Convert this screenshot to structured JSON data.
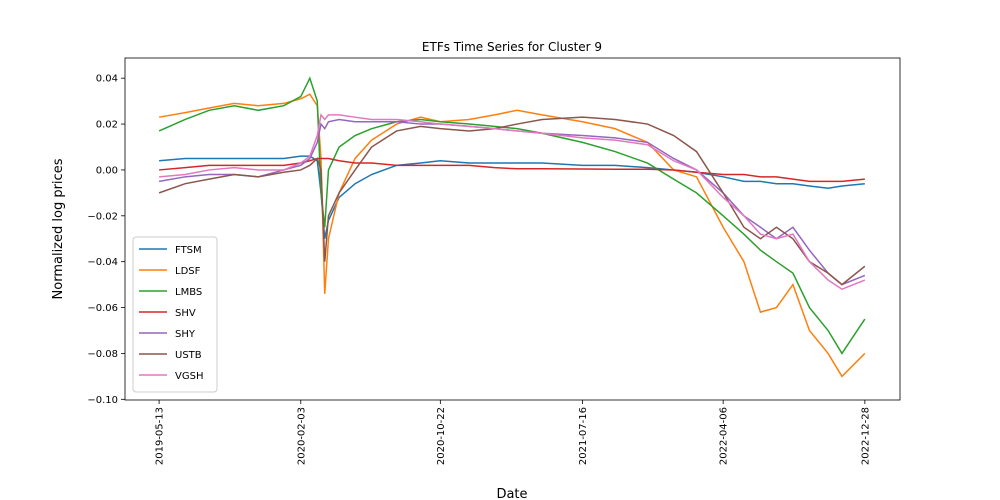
{
  "chart_data": {
    "type": "line",
    "title": "ETFs Time Series for Cluster 9",
    "x_label": "Date",
    "y_label": "Normalized log prices",
    "x": [
      "2019-05-13",
      "2019-07-01",
      "2019-08-15",
      "2019-10-01",
      "2019-11-15",
      "2020-01-02",
      "2020-02-03",
      "2020-02-20",
      "2020-03-05",
      "2020-03-12",
      "2020-03-19",
      "2020-03-26",
      "2020-04-15",
      "2020-05-15",
      "2020-06-15",
      "2020-08-01",
      "2020-09-15",
      "2020-10-22",
      "2020-12-15",
      "2021-02-01",
      "2021-03-15",
      "2021-05-01",
      "2021-07-16",
      "2021-09-15",
      "2021-11-15",
      "2022-01-03",
      "2022-02-15",
      "2022-04-06",
      "2022-05-15",
      "2022-06-15",
      "2022-07-15",
      "2022-08-15",
      "2022-09-15",
      "2022-10-20",
      "2022-11-15",
      "2022-12-28"
    ],
    "series": [
      {
        "name": "FTSM",
        "color": "#1f77b4",
        "values": [
          0.004,
          0.005,
          0.005,
          0.005,
          0.005,
          0.005,
          0.006,
          0.006,
          0.004,
          -0.01,
          -0.03,
          -0.022,
          -0.012,
          -0.006,
          -0.002,
          0.002,
          0.003,
          0.004,
          0.003,
          0.003,
          0.003,
          0.003,
          0.002,
          0.002,
          0.001,
          0.0,
          -0.001,
          -0.003,
          -0.005,
          -0.005,
          -0.006,
          -0.006,
          -0.007,
          -0.008,
          -0.007,
          -0.006
        ]
      },
      {
        "name": "LDSF",
        "color": "#ff7f0e",
        "values": [
          0.023,
          0.025,
          0.027,
          0.029,
          0.028,
          0.029,
          0.031,
          0.033,
          0.028,
          0.005,
          -0.054,
          -0.03,
          -0.01,
          0.005,
          0.013,
          0.02,
          0.023,
          0.021,
          0.022,
          0.024,
          0.026,
          0.024,
          0.021,
          0.018,
          0.012,
          0.0,
          -0.003,
          -0.025,
          -0.04,
          -0.062,
          -0.06,
          -0.05,
          -0.07,
          -0.08,
          -0.09,
          -0.08
        ]
      },
      {
        "name": "LMBS",
        "color": "#2ca02c",
        "values": [
          0.017,
          0.022,
          0.026,
          0.028,
          0.026,
          0.028,
          0.032,
          0.04,
          0.03,
          -0.01,
          -0.025,
          0.0,
          0.01,
          0.015,
          0.018,
          0.021,
          0.022,
          0.021,
          0.02,
          0.019,
          0.018,
          0.016,
          0.012,
          0.008,
          0.003,
          -0.004,
          -0.01,
          -0.02,
          -0.028,
          -0.035,
          -0.04,
          -0.045,
          -0.06,
          -0.07,
          -0.08,
          -0.065
        ]
      },
      {
        "name": "SHV",
        "color": "#d62728",
        "values": [
          0.0,
          0.001,
          0.002,
          0.002,
          0.002,
          0.002,
          0.003,
          0.004,
          0.005,
          0.005,
          0.005,
          0.005,
          0.004,
          0.003,
          0.003,
          0.002,
          0.002,
          0.002,
          0.002,
          0.001,
          0.0005,
          0.0005,
          0.0004,
          0.0003,
          0.0003,
          0.0,
          -0.001,
          -0.002,
          -0.002,
          -0.003,
          -0.003,
          -0.004,
          -0.005,
          -0.005,
          -0.005,
          -0.004
        ]
      },
      {
        "name": "SHY",
        "color": "#9467bd",
        "values": [
          -0.005,
          -0.003,
          -0.002,
          -0.002,
          -0.003,
          0.0,
          0.002,
          0.005,
          0.012,
          0.02,
          0.018,
          0.021,
          0.022,
          0.021,
          0.021,
          0.021,
          0.02,
          0.02,
          0.019,
          0.018,
          0.017,
          0.016,
          0.015,
          0.014,
          0.012,
          0.005,
          0.0,
          -0.01,
          -0.02,
          -0.025,
          -0.03,
          -0.025,
          -0.035,
          -0.045,
          -0.05,
          -0.046
        ]
      },
      {
        "name": "USTB",
        "color": "#8c564b",
        "values": [
          -0.01,
          -0.006,
          -0.004,
          -0.002,
          -0.003,
          -0.001,
          0.0,
          0.002,
          0.005,
          0.0,
          -0.04,
          -0.02,
          -0.01,
          0.0,
          0.01,
          0.017,
          0.019,
          0.018,
          0.017,
          0.018,
          0.02,
          0.022,
          0.023,
          0.022,
          0.02,
          0.015,
          0.008,
          -0.01,
          -0.025,
          -0.03,
          -0.025,
          -0.03,
          -0.04,
          -0.045,
          -0.05,
          -0.042
        ]
      },
      {
        "name": "VGSH",
        "color": "#e377c2",
        "values": [
          -0.003,
          -0.002,
          0.0,
          0.001,
          0.0,
          0.0,
          0.003,
          0.006,
          0.015,
          0.024,
          0.022,
          0.024,
          0.024,
          0.023,
          0.022,
          0.022,
          0.021,
          0.02,
          0.019,
          0.018,
          0.017,
          0.016,
          0.014,
          0.013,
          0.011,
          0.004,
          0.0,
          -0.012,
          -0.02,
          -0.028,
          -0.03,
          -0.028,
          -0.04,
          -0.048,
          -0.052,
          -0.048
        ]
      }
    ],
    "xlim": [
      "2019-03-10",
      "2023-03-04"
    ],
    "xticks": [
      "2019-05-13",
      "2020-02-03",
      "2020-10-22",
      "2021-07-16",
      "2022-04-06",
      "2022-12-28"
    ],
    "ylim": [
      -0.1003,
      0.0488
    ],
    "yticks": [
      {
        "value": -0.1,
        "label": "−0.10"
      },
      {
        "value": -0.08,
        "label": "−0.08"
      },
      {
        "value": -0.06,
        "label": "−0.06"
      },
      {
        "value": -0.04,
        "label": "−0.04"
      },
      {
        "value": -0.02,
        "label": "−0.02"
      },
      {
        "value": 0,
        "label": "0.00"
      },
      0.02,
      0.04
    ],
    "legend": "lower left",
    "grid": false
  }
}
